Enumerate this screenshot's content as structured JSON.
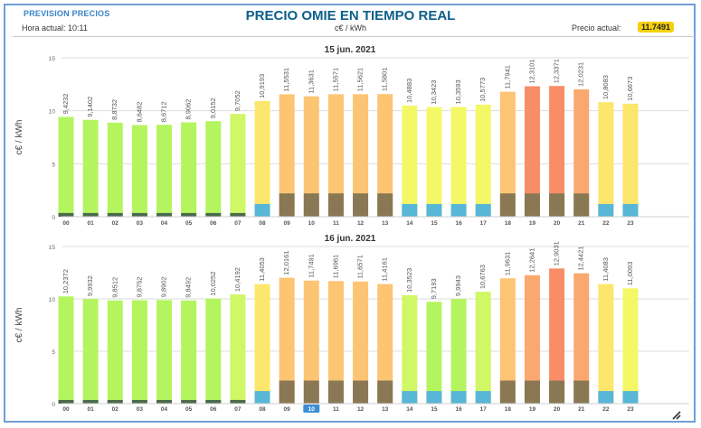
{
  "header": {
    "prevision": "PREVISION PRECIOS",
    "title": "PRECIO OMIE EN TIEMPO REAL",
    "hora_actual": "Hora actual: 10:11",
    "unit": "c€ / kWh",
    "precio_label": "Precio actual:",
    "precio_value": "11.7491"
  },
  "chart_data": [
    {
      "type": "bar",
      "title": "15 jun. 2021",
      "ylabel": "c€ / kWh",
      "ylim": [
        0,
        15
      ],
      "yticks": [
        "0",
        "5",
        "10",
        "15"
      ],
      "categories": [
        "00",
        "01",
        "02",
        "03",
        "04",
        "05",
        "06",
        "07",
        "08",
        "09",
        "10",
        "11",
        "12",
        "13",
        "14",
        "15",
        "16",
        "17",
        "18",
        "19",
        "20",
        "21",
        "22",
        "23"
      ],
      "values": [
        9.4232,
        9.1402,
        8.8732,
        8.6482,
        8.6712,
        8.9062,
        9.0152,
        9.7052,
        10.9193,
        11.5531,
        11.3631,
        11.5571,
        11.5621,
        11.5801,
        10.4883,
        10.3423,
        10.3593,
        10.5773,
        11.7941,
        12.3101,
        12.3371,
        12.0231,
        10.8083,
        10.6673
      ],
      "labels": [
        "9,4232",
        "9,1402",
        "8,8732",
        "8,6482",
        "8,6712",
        "8,9062",
        "9,0152",
        "9,7052",
        "10,9193",
        "11,5531",
        "11,3631",
        "11,5571",
        "11,5621",
        "11,5801",
        "10,4883",
        "10,3423",
        "10,3593",
        "10,5773",
        "11,7941",
        "12,3101",
        "12,3371",
        "12,0231",
        "10,8083",
        "10,6673"
      ],
      "colors": [
        "#b4f55f",
        "#b4f55f",
        "#b4f55f",
        "#b4f55f",
        "#b4f55f",
        "#b4f55f",
        "#b4f55f",
        "#cff766",
        "#fce66b",
        "#fdc474",
        "#fdc474",
        "#fdc474",
        "#fdc474",
        "#fdc474",
        "#f4f866",
        "#f4f866",
        "#f4f866",
        "#f4f866",
        "#fdc474",
        "#f98d68",
        "#f98d68",
        "#fba870",
        "#fce66b",
        "#fce66b"
      ],
      "base_values": [
        0.35,
        0.35,
        0.35,
        0.35,
        0.35,
        0.35,
        0.35,
        0.35,
        1.2,
        2.2,
        2.2,
        2.2,
        2.2,
        2.2,
        1.2,
        1.2,
        1.2,
        1.2,
        2.2,
        2.2,
        2.2,
        2.2,
        1.2,
        1.2
      ],
      "base_colors": [
        "#4b6b4a",
        "#4b6b4a",
        "#4b6b4a",
        "#4b6b4a",
        "#4b6b4a",
        "#4b6b4a",
        "#4b6b4a",
        "#4b6b4a",
        "#58b6d6",
        "#8a7855",
        "#8a7855",
        "#8a7855",
        "#8a7855",
        "#8a7855",
        "#58b6d6",
        "#58b6d6",
        "#58b6d6",
        "#58b6d6",
        "#8a7855",
        "#8a7855",
        "#8a7855",
        "#8a7855",
        "#58b6d6",
        "#58b6d6"
      ],
      "highlight": ""
    },
    {
      "type": "bar",
      "title": "16 jun. 2021",
      "ylabel": "c€ / kWh",
      "ylim": [
        0,
        15
      ],
      "yticks": [
        "0",
        "5",
        "10",
        "15"
      ],
      "categories": [
        "00",
        "01",
        "02",
        "03",
        "04",
        "05",
        "06",
        "07",
        "08",
        "09",
        "10",
        "11",
        "12",
        "13",
        "14",
        "15",
        "16",
        "17",
        "18",
        "19",
        "20",
        "21",
        "22",
        "23"
      ],
      "values": [
        10.2372,
        9.9932,
        9.8512,
        9.8752,
        9.8902,
        9.8492,
        10.0252,
        10.4192,
        11.4053,
        12.0161,
        11.7491,
        11.6961,
        11.6571,
        11.4161,
        10.3523,
        9.7193,
        9.9943,
        10.6763,
        11.9631,
        12.2641,
        12.9031,
        12.4421,
        11.4083,
        11.0093
      ],
      "labels": [
        "10,2372",
        "9,9932",
        "9,8512",
        "9,8752",
        "9,8902",
        "9,8492",
        "10,0252",
        "10,4192",
        "11,4053",
        "12,0161",
        "11,7491",
        "11,6961",
        "11,6571",
        "11,4161",
        "10,3523",
        "9,7193",
        "9,9943",
        "10,6763",
        "11,9631",
        "12,2641",
        "12,9031",
        "12,4421",
        "11,4083",
        "11,0093"
      ],
      "colors": [
        "#b4f55f",
        "#b4f55f",
        "#b4f55f",
        "#b4f55f",
        "#b4f55f",
        "#b4f55f",
        "#b4f55f",
        "#cff766",
        "#fce66b",
        "#fdc474",
        "#fdc474",
        "#fdc474",
        "#fdc474",
        "#fdc474",
        "#cff766",
        "#b4f55f",
        "#b4f55f",
        "#cff766",
        "#fdc474",
        "#fba870",
        "#f98d68",
        "#fba870",
        "#fce66b",
        "#f4f866"
      ],
      "base_values": [
        0.35,
        0.35,
        0.35,
        0.35,
        0.35,
        0.35,
        0.35,
        0.35,
        1.2,
        2.2,
        2.2,
        2.2,
        2.2,
        2.2,
        1.2,
        1.2,
        1.2,
        1.2,
        2.2,
        2.2,
        2.2,
        2.2,
        1.2,
        1.2
      ],
      "base_colors": [
        "#4b6b4a",
        "#4b6b4a",
        "#4b6b4a",
        "#4b6b4a",
        "#4b6b4a",
        "#4b6b4a",
        "#4b6b4a",
        "#4b6b4a",
        "#58b6d6",
        "#8a7855",
        "#8a7855",
        "#8a7855",
        "#8a7855",
        "#8a7855",
        "#58b6d6",
        "#58b6d6",
        "#58b6d6",
        "#58b6d6",
        "#8a7855",
        "#8a7855",
        "#8a7855",
        "#8a7855",
        "#58b6d6",
        "#58b6d6"
      ],
      "highlight": "10"
    }
  ]
}
